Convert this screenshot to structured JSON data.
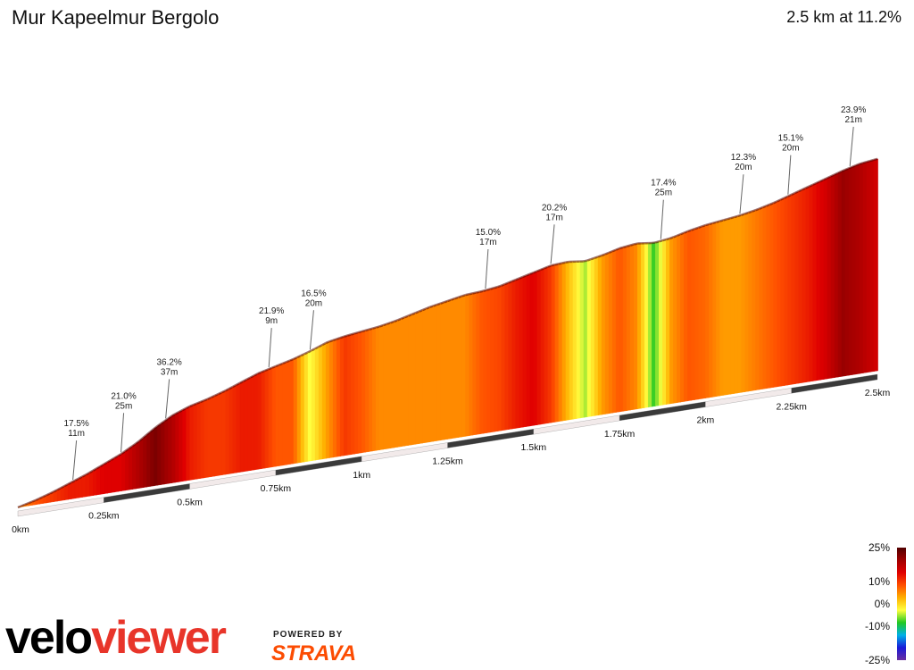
{
  "header": {
    "title": "Mur Kapeelmur Bergolo",
    "summary": "2.5 km at 11.2%"
  },
  "branding": {
    "logo_part1": "velo",
    "logo_part2": "viewer",
    "powered_by": "POWERED BY",
    "strava": "STRAVA"
  },
  "chart_data": {
    "type": "area",
    "xlabel": "",
    "ylabel": "",
    "distance_ticks": [
      "0km",
      "0.25km",
      "0.5km",
      "0.75km",
      "1km",
      "1.25km",
      "1.5km",
      "1.75km",
      "2km",
      "2.25km",
      "2.5km"
    ],
    "distance_tick_values": [
      0,
      0.25,
      0.5,
      0.75,
      1.0,
      1.25,
      1.5,
      1.75,
      2.0,
      2.25,
      2.5
    ],
    "xlim": [
      0,
      2.5
    ],
    "profile": {
      "distance_km": [
        0,
        0.05,
        0.1,
        0.15,
        0.2,
        0.25,
        0.3,
        0.35,
        0.4,
        0.45,
        0.5,
        0.55,
        0.6,
        0.65,
        0.7,
        0.75,
        0.8,
        0.85,
        0.9,
        0.95,
        1.0,
        1.05,
        1.1,
        1.15,
        1.2,
        1.25,
        1.3,
        1.35,
        1.4,
        1.45,
        1.5,
        1.55,
        1.6,
        1.65,
        1.7,
        1.75,
        1.8,
        1.85,
        1.9,
        1.95,
        2.0,
        2.05,
        2.1,
        2.15,
        2.2,
        2.25,
        2.3,
        2.35,
        2.4,
        2.45,
        2.5
      ],
      "elevation_m": [
        0,
        4,
        9,
        15,
        21,
        28,
        35,
        44,
        55,
        64,
        70,
        74,
        79,
        85,
        91,
        95,
        99,
        104,
        110,
        113,
        115,
        117,
        120,
        124,
        128,
        131,
        134,
        135,
        137,
        141,
        145,
        149,
        150,
        148,
        151,
        155,
        157,
        155,
        157,
        161,
        164,
        166,
        168,
        171,
        175,
        180,
        185,
        190,
        195,
        199,
        201
      ],
      "gradient_pct": [
        4,
        8,
        10,
        12,
        12,
        14,
        14,
        18,
        22,
        18,
        12,
        10,
        10,
        12,
        12,
        8,
        8,
        -3,
        4,
        10,
        8,
        5,
        5,
        5,
        5,
        5,
        5,
        8,
        9,
        12,
        14,
        10,
        2,
        -5,
        4,
        8,
        5,
        -8,
        4,
        8,
        7,
        4,
        4,
        6,
        8,
        10,
        12,
        15,
        20,
        18,
        15
      ]
    },
    "annotations": [
      {
        "distance_km": 0.16,
        "gradient": "17.5%",
        "length": "11m"
      },
      {
        "distance_km": 0.3,
        "gradient": "21.0%",
        "length": "25m"
      },
      {
        "distance_km": 0.43,
        "gradient": "36.2%",
        "length": "37m"
      },
      {
        "distance_km": 0.73,
        "gradient": "21.9%",
        "length": "9m"
      },
      {
        "distance_km": 0.85,
        "gradient": "16.5%",
        "length": "20m"
      },
      {
        "distance_km": 1.36,
        "gradient": "15.0%",
        "length": "17m"
      },
      {
        "distance_km": 1.55,
        "gradient": "20.2%",
        "length": "17m"
      },
      {
        "distance_km": 1.87,
        "gradient": "17.4%",
        "length": "25m"
      },
      {
        "distance_km": 2.1,
        "gradient": "12.3%",
        "length": "20m"
      },
      {
        "distance_km": 2.24,
        "gradient": "15.1%",
        "length": "20m"
      },
      {
        "distance_km": 2.42,
        "gradient": "23.9%",
        "length": "21m"
      }
    ],
    "legend": {
      "labels": [
        "25%",
        "10%",
        "0%",
        "-10%",
        "-25%"
      ],
      "values": [
        25,
        10,
        0,
        -10,
        -25
      ]
    },
    "colors": {
      "gradient_scale": [
        "#6a2fa0",
        "#1a1ad8",
        "#00b0e8",
        "#22c822",
        "#ffff40",
        "#ffb000",
        "#ff5000",
        "#e00000",
        "#a00000",
        "#500000"
      ]
    }
  }
}
